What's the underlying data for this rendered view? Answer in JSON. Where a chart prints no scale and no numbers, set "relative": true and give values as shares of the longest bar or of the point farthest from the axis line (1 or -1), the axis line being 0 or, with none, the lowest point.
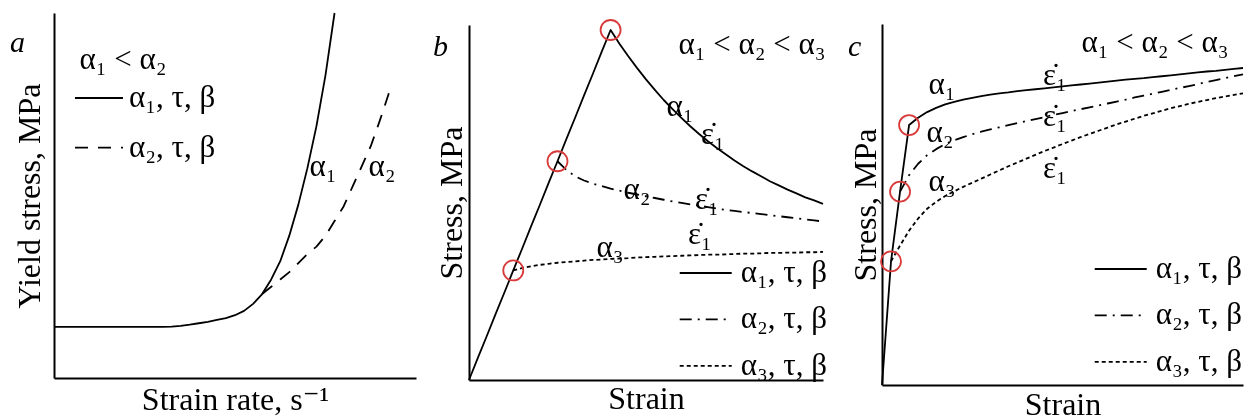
{
  "chart_data": [
    {
      "type": "line",
      "title": "a",
      "xlabel": "Strain rate, s⁻¹",
      "ylabel": "Yield stress, MPa",
      "relative": true,
      "legend": "top left",
      "annotations": [
        "α₁ < α₂",
        "α₁",
        "α₂"
      ],
      "categories": [
        null,
        null,
        null,
        null,
        null,
        null,
        null,
        null,
        null,
        null,
        null,
        null,
        null,
        null,
        null,
        null,
        null,
        null,
        null,
        null,
        null,
        null,
        null,
        null,
        null,
        null,
        null,
        null,
        null,
        null,
        null,
        null,
        null,
        null,
        null,
        null,
        null,
        null,
        null,
        null,
        null
      ],
      "series": [
        {
          "name": "α₁, τ, β",
          "color": "#000000",
          "line_style": "solid",
          "values": [
            0.14,
            0.14,
            0.14,
            0.14,
            0.14,
            0.14,
            0.14,
            0.14,
            0.14,
            0.14,
            0.14,
            0.14,
            0.14,
            0.141,
            0.143,
            0.146,
            0.15,
            0.154,
            0.159,
            0.164,
            0.172,
            0.184,
            0.203,
            0.23,
            0.27,
            0.32,
            0.39,
            0.475,
            0.575,
            0.69,
            0.83,
            1,
            null,
            null,
            null,
            null,
            null,
            null,
            null,
            null,
            null
          ]
        },
        {
          "name": "α₂, τ, β",
          "color": "#000000",
          "line_style": "dashed",
          "values": [
            null,
            null,
            null,
            null,
            null,
            null,
            null,
            null,
            null,
            null,
            null,
            null,
            null,
            null,
            null,
            null,
            null,
            null,
            null,
            null,
            null,
            null,
            null,
            0.23,
            0.25,
            0.27,
            0.29,
            0.315,
            0.34,
            0.36,
            0.39,
            0.43,
            0.47,
            0.525,
            0.58,
            0.635,
            0.705,
            0.78,
            null,
            null,
            null
          ]
        }
      ]
    },
    {
      "type": "line",
      "title": "b",
      "xlabel": "Strain",
      "ylabel": "Stress, MPa",
      "relative": true,
      "legend": "bottom right",
      "annotations": [
        "α₁ < α₂ < α₃",
        "α₁",
        "ε̇₁",
        "α₂",
        "ε̇₁",
        "α₃",
        "ε̇₁"
      ],
      "categories": [
        null,
        null,
        null,
        null,
        null,
        null,
        null,
        null,
        null,
        null,
        null,
        null,
        null,
        null,
        null,
        null,
        null,
        null,
        null,
        null,
        null,
        null,
        null,
        null,
        null,
        null,
        null,
        null,
        null,
        null,
        null,
        null,
        null,
        null,
        null,
        null,
        null,
        null,
        null,
        null,
        null
      ],
      "series": [
        {
          "name": "α₁, τ, β",
          "color": "#000000",
          "line_style": "solid",
          "values": [
            0,
            0.063,
            0.125,
            0.188,
            0.25,
            0.313,
            0.375,
            0.438,
            0.5,
            0.563,
            0.625,
            0.688,
            0.75,
            0.813,
            0.875,
            0.938,
            1,
            0.961,
            0.925,
            0.891,
            0.859,
            0.829,
            0.8,
            0.774,
            0.749,
            0.725,
            0.703,
            0.682,
            0.663,
            0.645,
            0.627,
            0.611,
            0.596,
            0.582,
            0.568,
            0.556,
            0.544,
            0.533,
            0.522,
            0.513,
            0.503
          ]
        },
        {
          "name": "α₂, τ, β",
          "color": "#000000",
          "line_style": "dashed",
          "values": [
            null,
            null,
            null,
            null,
            null,
            null,
            null,
            null,
            null,
            null,
            0.625,
            0.6,
            0.582,
            0.57,
            0.561,
            0.554,
            0.547,
            0.541,
            0.535,
            0.53,
            0.525,
            0.52,
            0.515,
            0.51,
            0.506,
            0.502,
            0.498,
            0.494,
            0.49,
            0.486,
            0.483,
            0.48,
            0.477,
            0.474,
            0.471,
            0.468,
            0.465,
            0.462,
            0.459,
            0.456,
            0.453
          ]
        },
        {
          "name": "α₃, τ, β",
          "color": "#000000",
          "line_style": "dotted",
          "values": [
            null,
            null,
            null,
            null,
            null,
            0.313,
            0.32,
            0.325,
            0.329,
            0.332,
            0.335,
            0.337,
            0.339,
            0.341,
            0.343,
            0.344,
            0.346,
            0.347,
            0.348,
            0.35,
            0.351,
            0.352,
            0.353,
            0.354,
            0.355,
            0.356,
            0.357,
            0.358,
            0.358,
            0.359,
            0.36,
            0.361,
            0.361,
            0.362,
            0.363,
            0.363,
            0.364,
            0.364,
            0.365,
            0.365,
            0.366
          ]
        }
      ]
    },
    {
      "type": "line",
      "title": "c",
      "xlabel": "Strain",
      "ylabel": "Stress, MPa",
      "relative": true,
      "legend": "bottom right",
      "annotations": [
        "α₁ < α₂ < α₃",
        "α₁",
        "ε̇₁",
        "α₂",
        "ε̇₁",
        "α₃",
        "ε̇₁"
      ],
      "categories": [
        null,
        null,
        null,
        null,
        null,
        null,
        null,
        null,
        null,
        null,
        null,
        null,
        null,
        null,
        null,
        null,
        null,
        null,
        null,
        null,
        null,
        null,
        null,
        null,
        null,
        null,
        null,
        null,
        null,
        null,
        null,
        null,
        null,
        null,
        null,
        null,
        null,
        null,
        null,
        null,
        null
      ],
      "series": [
        {
          "name": "α₁, τ, β",
          "color": "#000000",
          "line_style": "solid",
          "values": [
            0,
            0.39,
            0.61,
            0.82,
            0.843,
            0.861,
            0.874,
            0.885,
            0.893,
            0.9,
            0.906,
            0.911,
            0.916,
            0.92,
            0.923,
            0.927,
            0.93,
            0.933,
            0.936,
            0.939,
            0.942,
            0.945,
            0.948,
            0.951,
            0.954,
            0.957,
            0.96,
            0.963,
            0.966,
            0.968,
            0.971,
            0.974,
            0.977,
            0.98,
            0.983,
            0.986,
            0.989,
            0.991,
            0.994,
            0.997,
            1
          ]
        },
        {
          "name": "α₂, τ, β",
          "color": "#000000",
          "line_style": "dashed",
          "values": [
            null,
            null,
            0.61,
            0.662,
            0.698,
            0.725,
            0.744,
            0.76,
            0.772,
            0.782,
            0.791,
            0.799,
            0.806,
            0.813,
            0.82,
            0.826,
            0.833,
            0.839,
            0.845,
            0.852,
            0.858,
            0.864,
            0.87,
            0.876,
            0.882,
            0.888,
            0.894,
            0.9,
            0.907,
            0.913,
            0.919,
            0.925,
            0.931,
            0.937,
            0.943,
            0.949,
            0.956,
            0.962,
            0.968,
            0.974,
            0.98
          ]
        },
        {
          "name": "α₃, τ, β",
          "color": "#000000",
          "line_style": "dotted",
          "values": [
            null,
            0.39,
            0.44,
            0.487,
            0.525,
            0.556,
            0.578,
            0.596,
            0.611,
            0.625,
            0.638,
            0.651,
            0.664,
            0.677,
            0.69,
            0.702,
            0.714,
            0.726,
            0.738,
            0.749,
            0.76,
            0.771,
            0.782,
            0.792,
            0.802,
            0.812,
            0.822,
            0.831,
            0.84,
            0.849,
            0.857,
            0.865,
            0.873,
            0.88,
            0.887,
            0.893,
            0.899,
            0.905,
            0.91,
            0.915,
            0.92
          ]
        }
      ]
    }
  ]
}
